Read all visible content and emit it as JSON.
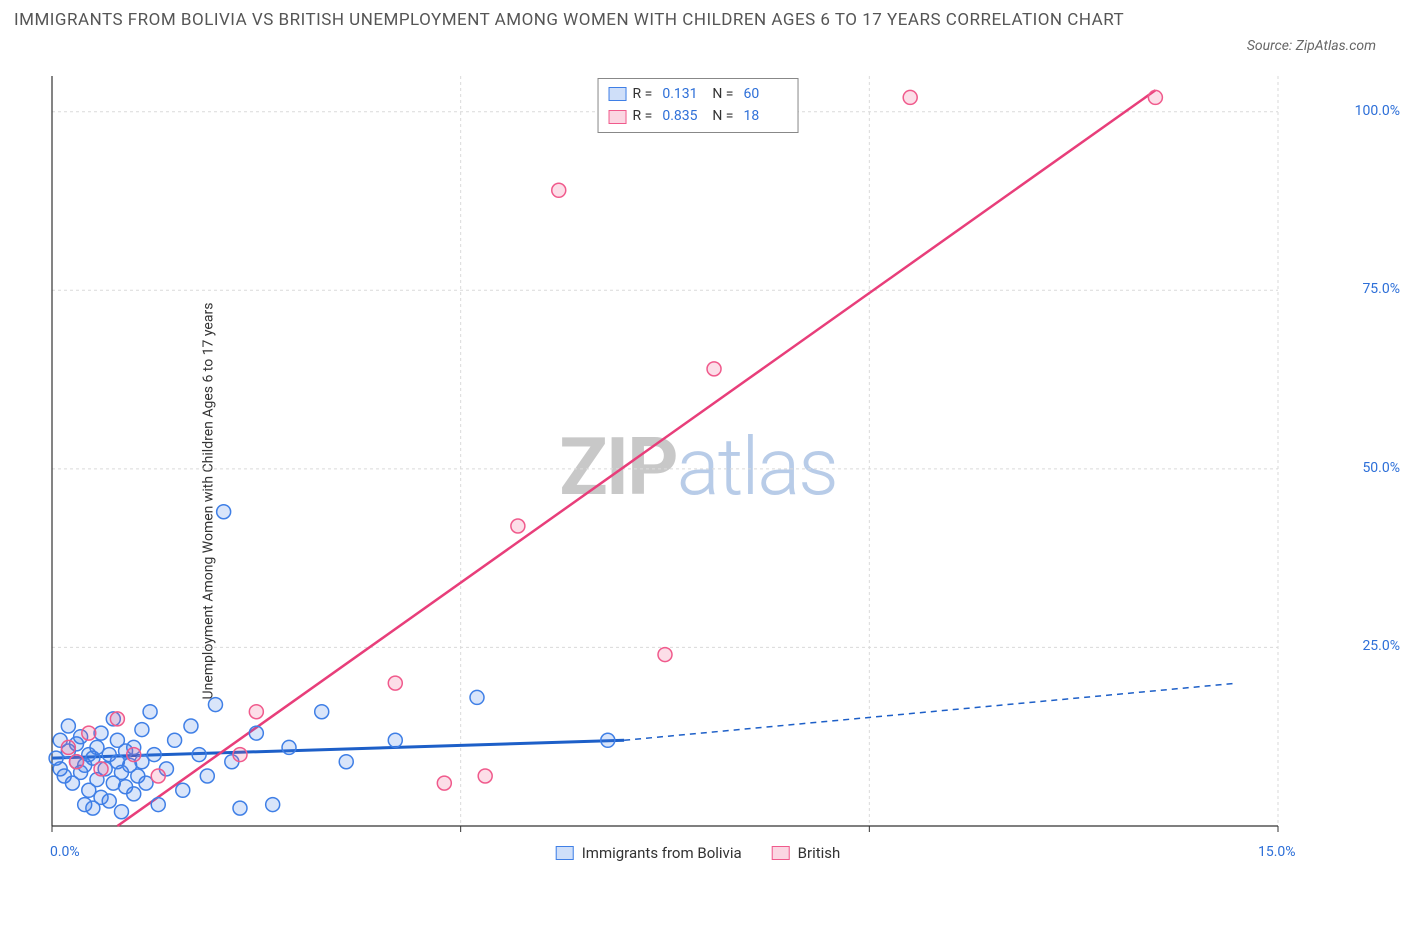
{
  "title": "IMMIGRANTS FROM BOLIVIA VS BRITISH UNEMPLOYMENT AMONG WOMEN WITH CHILDREN AGES 6 TO 17 YEARS CORRELATION CHART",
  "source": "Source: ZipAtlas.com",
  "y_axis_label": "Unemployment Among Women with Children Ages 6 to 17 years",
  "watermark_a": "ZIP",
  "watermark_b": "atlas",
  "chart": {
    "type": "scatter",
    "x_domain": [
      0,
      15
    ],
    "y_domain": [
      0,
      105
    ],
    "x_ticks": [
      0,
      5,
      10,
      15
    ],
    "x_tick_labels": [
      "0.0%",
      "",
      "",
      "15.0%"
    ],
    "y_ticks": [
      25,
      50,
      75,
      100
    ],
    "y_tick_labels": [
      "25.0%",
      "50.0%",
      "75.0%",
      "100.0%"
    ],
    "grid_color": "#dadada",
    "grid_dash": "3 3",
    "axis_color": "#333333",
    "background_color": "#ffffff",
    "marker_radius": 7,
    "marker_stroke_width": 1.5,
    "series": [
      {
        "name": "Immigrants from Bolivia",
        "fill": "rgba(63,127,230,0.20)",
        "stroke": "#3f7fe6",
        "R": "0.131",
        "N": "60",
        "trend": {
          "x1": 0,
          "y1": 9.5,
          "x2": 7.0,
          "y2": 12.0,
          "solid": true,
          "stroke": "#1d5fc8",
          "width": 3
        },
        "trend_ext": {
          "x1": 7.0,
          "y1": 12.0,
          "x2": 14.5,
          "y2": 20.0,
          "solid": false,
          "stroke": "#1d5fc8",
          "width": 1.5,
          "dash": "6 5"
        },
        "points": [
          [
            0.05,
            9.5
          ],
          [
            0.1,
            8
          ],
          [
            0.1,
            12
          ],
          [
            0.15,
            7
          ],
          [
            0.2,
            10.5
          ],
          [
            0.2,
            14
          ],
          [
            0.25,
            6
          ],
          [
            0.3,
            9
          ],
          [
            0.3,
            11.5
          ],
          [
            0.35,
            7.5
          ],
          [
            0.35,
            12.5
          ],
          [
            0.4,
            3
          ],
          [
            0.4,
            8.5
          ],
          [
            0.45,
            5
          ],
          [
            0.45,
            10
          ],
          [
            0.5,
            2.5
          ],
          [
            0.5,
            9.5
          ],
          [
            0.55,
            6.5
          ],
          [
            0.55,
            11
          ],
          [
            0.6,
            4
          ],
          [
            0.6,
            13
          ],
          [
            0.65,
            8
          ],
          [
            0.7,
            3.5
          ],
          [
            0.7,
            10
          ],
          [
            0.75,
            6
          ],
          [
            0.75,
            15
          ],
          [
            0.8,
            9
          ],
          [
            0.8,
            12
          ],
          [
            0.85,
            2
          ],
          [
            0.85,
            7.5
          ],
          [
            0.9,
            5.5
          ],
          [
            0.9,
            10.5
          ],
          [
            0.95,
            8.5
          ],
          [
            1.0,
            4.5
          ],
          [
            1.0,
            11
          ],
          [
            1.05,
            7
          ],
          [
            1.1,
            13.5
          ],
          [
            1.1,
            9
          ],
          [
            1.15,
            6
          ],
          [
            1.2,
            16
          ],
          [
            1.25,
            10
          ],
          [
            1.3,
            3
          ],
          [
            1.4,
            8
          ],
          [
            1.5,
            12
          ],
          [
            1.6,
            5
          ],
          [
            1.7,
            14
          ],
          [
            1.8,
            10
          ],
          [
            1.9,
            7
          ],
          [
            2.0,
            17
          ],
          [
            2.1,
            44
          ],
          [
            2.2,
            9
          ],
          [
            2.3,
            2.5
          ],
          [
            2.5,
            13
          ],
          [
            2.7,
            3
          ],
          [
            2.9,
            11
          ],
          [
            3.3,
            16
          ],
          [
            3.6,
            9
          ],
          [
            4.2,
            12
          ],
          [
            5.2,
            18
          ],
          [
            6.8,
            12
          ]
        ]
      },
      {
        "name": "British",
        "fill": "rgba(240,90,140,0.20)",
        "stroke": "#f05a8c",
        "R": "0.835",
        "N": "18",
        "trend": {
          "x1": 0.8,
          "y1": 0,
          "x2": 13.5,
          "y2": 103,
          "solid": true,
          "stroke": "#e83e7a",
          "width": 2.5
        },
        "points": [
          [
            0.2,
            11
          ],
          [
            0.3,
            9
          ],
          [
            0.45,
            13
          ],
          [
            0.6,
            8
          ],
          [
            0.8,
            15
          ],
          [
            1.0,
            10
          ],
          [
            1.3,
            7
          ],
          [
            2.3,
            10
          ],
          [
            2.5,
            16
          ],
          [
            4.2,
            20
          ],
          [
            4.8,
            6
          ],
          [
            5.3,
            7
          ],
          [
            5.7,
            42
          ],
          [
            6.2,
            89
          ],
          [
            7.5,
            24
          ],
          [
            8.1,
            64
          ],
          [
            10.5,
            102
          ],
          [
            13.5,
            102
          ]
        ]
      }
    ],
    "legend_bottom": [
      {
        "label": "Immigrants from Bolivia",
        "swatch": "blue"
      },
      {
        "label": "British",
        "swatch": "pink"
      }
    ]
  },
  "legend_top_labels": {
    "R": "R =",
    "N": "N ="
  }
}
